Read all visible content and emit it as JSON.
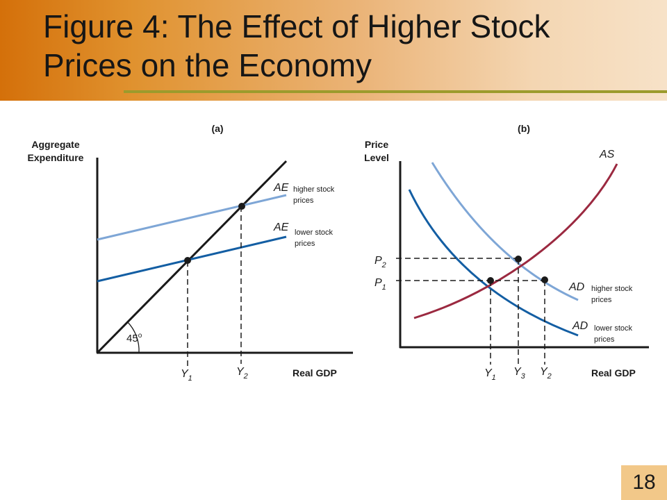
{
  "slide": {
    "title_line1": "Figure 4:  The Effect of Higher Stock",
    "title_line2": "Prices on the Economy",
    "number": "18"
  },
  "colors": {
    "header_start": "#d4700a",
    "header_end": "#f7e2c8",
    "title_rule": "#9c9b2c",
    "number_box": "#f2c889",
    "curve_light_blue": "#7ea6d6",
    "curve_dark_blue": "#135ea3",
    "curve_red": "#9b2940",
    "axis": "#1a1a1a"
  },
  "panel_a": {
    "label": "(a)",
    "y_axis_line1": "Aggregate",
    "y_axis_line2": "Expenditure",
    "x_axis": "Real GDP",
    "angle": "45",
    "degree": "o",
    "ae_high": {
      "name": "AE",
      "sub1": "higher stock",
      "sub2": "prices"
    },
    "ae_low": {
      "name": "AE",
      "sub1": "lower stock",
      "sub2": "prices"
    },
    "y1": {
      "main": "Y",
      "sub": "1"
    },
    "y2": {
      "main": "Y",
      "sub": "2"
    }
  },
  "panel_b": {
    "label": "(b)",
    "y_axis_line1": "Price",
    "y_axis_line2": "Level",
    "x_axis": "Real GDP",
    "as_label": "AS",
    "ad_high": {
      "name": "AD",
      "sub1": "higher stock",
      "sub2": "prices"
    },
    "ad_low": {
      "name": "AD",
      "sub1": "lower stock",
      "sub2": "prices"
    },
    "p1": {
      "main": "P",
      "sub": "1"
    },
    "p2": {
      "main": "P",
      "sub": "2"
    },
    "y1": {
      "main": "Y",
      "sub": "1"
    },
    "y2": {
      "main": "Y",
      "sub": "2"
    },
    "y3": {
      "main": "Y",
      "sub": "3"
    }
  }
}
